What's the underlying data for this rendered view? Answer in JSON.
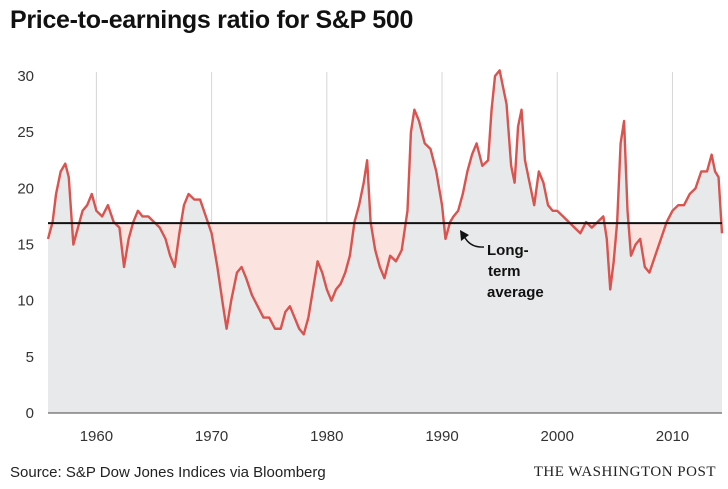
{
  "header": {
    "title": "Price-to-earnings ratio for S&P 500"
  },
  "footer": {
    "source": "Source: S&P Dow Jones Indices via Bloomberg",
    "credit": "THE WASHINGTON POST"
  },
  "colors": {
    "line": "#d9534f",
    "fill_above": "#fbe3df",
    "fill_below": "#e8e9eb",
    "average_line": "#111111",
    "grid": "#d6d6d6"
  },
  "chart_data": {
    "type": "area",
    "title": "Price-to-earnings ratio for S&P 500",
    "xlabel": "",
    "ylabel": "",
    "xlim": [
      1955.8,
      2014.3
    ],
    "ylim": [
      0,
      30
    ],
    "x_ticks": [
      1960,
      1970,
      1980,
      1990,
      2000,
      2010
    ],
    "y_ticks": [
      0,
      5,
      10,
      15,
      20,
      25,
      30
    ],
    "grid": "vertical lines at x ticks",
    "reference_line": {
      "value": 16.9,
      "label_lines": [
        "Long-",
        "term",
        "average"
      ]
    },
    "series": [
      {
        "points": [
          [
            1955.8,
            15.5
          ],
          [
            1956.2,
            17.0
          ],
          [
            1956.5,
            19.5
          ],
          [
            1956.9,
            21.5
          ],
          [
            1957.3,
            22.2
          ],
          [
            1957.6,
            21.0
          ],
          [
            1958.0,
            15.0
          ],
          [
            1958.4,
            16.5
          ],
          [
            1958.8,
            18.0
          ],
          [
            1959.2,
            18.5
          ],
          [
            1959.6,
            19.5
          ],
          [
            1960.0,
            18.0
          ],
          [
            1960.5,
            17.5
          ],
          [
            1961.0,
            18.5
          ],
          [
            1961.5,
            17.0
          ],
          [
            1962.0,
            16.5
          ],
          [
            1962.4,
            13.0
          ],
          [
            1962.8,
            15.5
          ],
          [
            1963.2,
            17.0
          ],
          [
            1963.6,
            18.0
          ],
          [
            1964.0,
            17.5
          ],
          [
            1964.5,
            17.5
          ],
          [
            1965.0,
            17.0
          ],
          [
            1965.5,
            16.5
          ],
          [
            1966.0,
            15.5
          ],
          [
            1966.4,
            14.0
          ],
          [
            1966.8,
            13.0
          ],
          [
            1967.2,
            16.0
          ],
          [
            1967.6,
            18.5
          ],
          [
            1968.0,
            19.5
          ],
          [
            1968.5,
            19.0
          ],
          [
            1969.0,
            19.0
          ],
          [
            1969.5,
            17.5
          ],
          [
            1970.0,
            16.0
          ],
          [
            1970.5,
            13.0
          ],
          [
            1971.0,
            9.5
          ],
          [
            1971.3,
            7.5
          ],
          [
            1971.7,
            10.0
          ],
          [
            1972.2,
            12.5
          ],
          [
            1972.6,
            13.0
          ],
          [
            1973.0,
            12.0
          ],
          [
            1973.5,
            10.5
          ],
          [
            1974.0,
            9.5
          ],
          [
            1974.5,
            8.5
          ],
          [
            1975.0,
            8.5
          ],
          [
            1975.5,
            7.5
          ],
          [
            1976.0,
            7.5
          ],
          [
            1976.4,
            9.0
          ],
          [
            1976.8,
            9.5
          ],
          [
            1977.2,
            8.5
          ],
          [
            1977.6,
            7.5
          ],
          [
            1978.0,
            7.0
          ],
          [
            1978.4,
            8.5
          ],
          [
            1978.8,
            11.0
          ],
          [
            1979.2,
            13.5
          ],
          [
            1979.6,
            12.5
          ],
          [
            1980.0,
            11.0
          ],
          [
            1980.4,
            10.0
          ],
          [
            1980.8,
            11.0
          ],
          [
            1981.2,
            11.5
          ],
          [
            1981.6,
            12.5
          ],
          [
            1982.0,
            14.0
          ],
          [
            1982.4,
            17.0
          ],
          [
            1982.8,
            18.5
          ],
          [
            1983.2,
            20.5
          ],
          [
            1983.5,
            22.5
          ],
          [
            1983.8,
            17.0
          ],
          [
            1984.2,
            14.5
          ],
          [
            1984.6,
            13.0
          ],
          [
            1985.0,
            12.0
          ],
          [
            1985.5,
            14.0
          ],
          [
            1986.0,
            13.5
          ],
          [
            1986.5,
            14.5
          ],
          [
            1987.0,
            18.0
          ],
          [
            1987.3,
            25.0
          ],
          [
            1987.6,
            27.0
          ],
          [
            1988.0,
            26.0
          ],
          [
            1988.5,
            24.0
          ],
          [
            1989.0,
            23.5
          ],
          [
            1989.5,
            21.5
          ],
          [
            1990.0,
            18.5
          ],
          [
            1990.3,
            15.5
          ],
          [
            1990.7,
            17.0
          ],
          [
            1991.0,
            17.5
          ],
          [
            1991.4,
            18.0
          ],
          [
            1991.8,
            19.5
          ],
          [
            1992.2,
            21.5
          ],
          [
            1992.6,
            23.0
          ],
          [
            1993.0,
            24.0
          ],
          [
            1993.5,
            22.0
          ],
          [
            1994.0,
            22.5
          ],
          [
            1994.3,
            27.0
          ],
          [
            1994.6,
            30.0
          ],
          [
            1995.0,
            30.5
          ],
          [
            1995.3,
            29.0
          ],
          [
            1995.6,
            27.5
          ],
          [
            1996.0,
            22.0
          ],
          [
            1996.3,
            20.5
          ],
          [
            1996.6,
            25.5
          ],
          [
            1996.9,
            27.0
          ],
          [
            1997.2,
            22.5
          ],
          [
            1997.6,
            20.5
          ],
          [
            1998.0,
            18.5
          ],
          [
            1998.4,
            21.5
          ],
          [
            1998.8,
            20.5
          ],
          [
            1999.2,
            18.5
          ],
          [
            1999.6,
            18.0
          ],
          [
            2000.0,
            18.0
          ],
          [
            2000.5,
            17.5
          ],
          [
            2001.0,
            17.0
          ],
          [
            2001.5,
            16.5
          ],
          [
            2002.0,
            16.0
          ],
          [
            2002.5,
            17.0
          ],
          [
            2003.0,
            16.5
          ],
          [
            2003.5,
            17.0
          ],
          [
            2004.0,
            17.5
          ],
          [
            2004.3,
            15.5
          ],
          [
            2004.6,
            11.0
          ],
          [
            2004.9,
            13.5
          ],
          [
            2005.2,
            17.0
          ],
          [
            2005.5,
            24.0
          ],
          [
            2005.8,
            26.0
          ],
          [
            2006.1,
            18.0
          ],
          [
            2006.4,
            14.0
          ],
          [
            2006.8,
            15.0
          ],
          [
            2007.2,
            15.5
          ],
          [
            2007.6,
            13.0
          ],
          [
            2008.0,
            12.5
          ],
          [
            2008.5,
            14.0
          ],
          [
            2009.0,
            15.5
          ],
          [
            2009.5,
            17.0
          ],
          [
            2010.0,
            18.0
          ],
          [
            2010.5,
            18.5
          ],
          [
            2011.0,
            18.5
          ],
          [
            2011.5,
            19.5
          ],
          [
            2012.0,
            20.0
          ],
          [
            2012.5,
            21.5
          ],
          [
            2013.0,
            21.5
          ],
          [
            2013.4,
            23.0
          ],
          [
            2013.7,
            21.5
          ],
          [
            2014.0,
            21.0
          ],
          [
            2014.3,
            16.0
          ]
        ]
      }
    ]
  }
}
